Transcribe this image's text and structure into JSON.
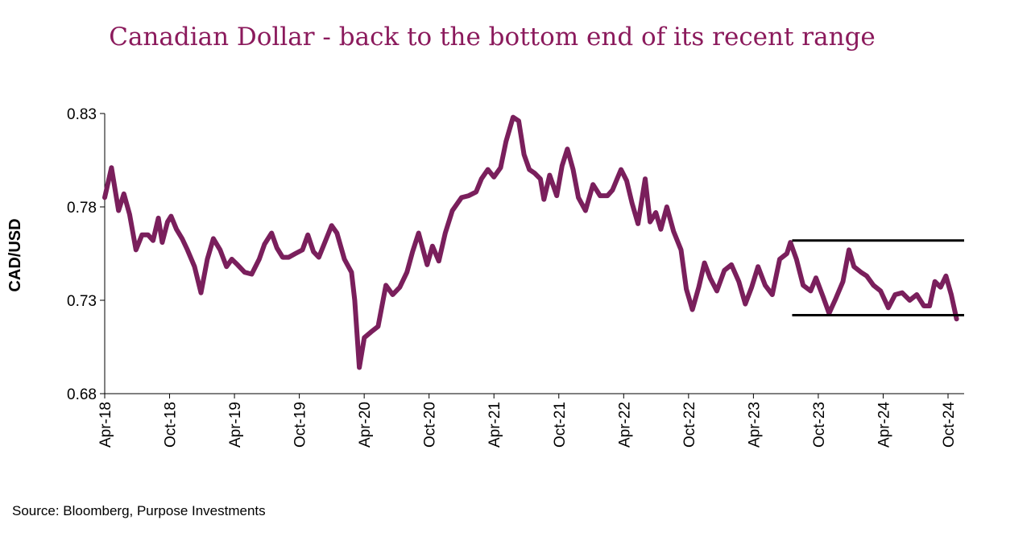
{
  "colors": {
    "title": "#8B1A5C",
    "series": "#7A1F5C",
    "range_lines": "#000000"
  },
  "footer": {
    "source": "Source: Bloomberg, Purpose Investments"
  },
  "chart_data": {
    "type": "line",
    "title": "Canadian Dollar - back to the bottom end of its recent range",
    "xlabel": "",
    "ylabel": "CAD/USD",
    "ylim": [
      0.68,
      0.83
    ],
    "yticks": [
      "0.68",
      "0.73",
      "0.78",
      "0.83"
    ],
    "xticks": [
      "Apr-18",
      "Oct-18",
      "Apr-19",
      "Oct-19",
      "Apr-20",
      "Oct-20",
      "Apr-21",
      "Oct-21",
      "Apr-22",
      "Oct-22",
      "Apr-23",
      "Oct-23",
      "Apr-24",
      "Oct-24"
    ],
    "grid": false,
    "legend": "none",
    "series": [
      {
        "values": [
          [
            "2018-04-01",
            0.785
          ],
          [
            "2018-04-20",
            0.801
          ],
          [
            "2018-05-10",
            0.778
          ],
          [
            "2018-05-25",
            0.787
          ],
          [
            "2018-06-10",
            0.776
          ],
          [
            "2018-06-28",
            0.757
          ],
          [
            "2018-07-15",
            0.765
          ],
          [
            "2018-08-01",
            0.765
          ],
          [
            "2018-08-15",
            0.762
          ],
          [
            "2018-08-30",
            0.774
          ],
          [
            "2018-09-10",
            0.761
          ],
          [
            "2018-09-25",
            0.772
          ],
          [
            "2018-10-05",
            0.775
          ],
          [
            "2018-10-20",
            0.768
          ],
          [
            "2018-11-05",
            0.763
          ],
          [
            "2018-11-20",
            0.757
          ],
          [
            "2018-12-10",
            0.748
          ],
          [
            "2018-12-28",
            0.734
          ],
          [
            "2019-01-15",
            0.752
          ],
          [
            "2019-02-01",
            0.763
          ],
          [
            "2019-02-20",
            0.757
          ],
          [
            "2019-03-10",
            0.748
          ],
          [
            "2019-03-25",
            0.752
          ],
          [
            "2019-04-10",
            0.749
          ],
          [
            "2019-04-30",
            0.745
          ],
          [
            "2019-05-20",
            0.744
          ],
          [
            "2019-06-10",
            0.752
          ],
          [
            "2019-06-25",
            0.76
          ],
          [
            "2019-07-15",
            0.766
          ],
          [
            "2019-07-30",
            0.758
          ],
          [
            "2019-08-15",
            0.753
          ],
          [
            "2019-09-01",
            0.753
          ],
          [
            "2019-09-20",
            0.755
          ],
          [
            "2019-10-10",
            0.757
          ],
          [
            "2019-10-25",
            0.765
          ],
          [
            "2019-11-10",
            0.756
          ],
          [
            "2019-11-25",
            0.753
          ],
          [
            "2019-12-10",
            0.76
          ],
          [
            "2019-12-31",
            0.77
          ],
          [
            "2020-01-15",
            0.766
          ],
          [
            "2020-02-05",
            0.752
          ],
          [
            "2020-02-25",
            0.745
          ],
          [
            "2020-03-05",
            0.73
          ],
          [
            "2020-03-18",
            0.694
          ],
          [
            "2020-04-01",
            0.71
          ],
          [
            "2020-04-20",
            0.713
          ],
          [
            "2020-05-10",
            0.716
          ],
          [
            "2020-06-01",
            0.738
          ],
          [
            "2020-06-20",
            0.733
          ],
          [
            "2020-07-10",
            0.737
          ],
          [
            "2020-07-30",
            0.745
          ],
          [
            "2020-08-15",
            0.756
          ],
          [
            "2020-09-01",
            0.766
          ],
          [
            "2020-09-25",
            0.749
          ],
          [
            "2020-10-10",
            0.759
          ],
          [
            "2020-10-28",
            0.751
          ],
          [
            "2020-11-15",
            0.766
          ],
          [
            "2020-12-05",
            0.778
          ],
          [
            "2020-12-31",
            0.785
          ],
          [
            "2021-01-20",
            0.786
          ],
          [
            "2021-02-10",
            0.788
          ],
          [
            "2021-02-25",
            0.795
          ],
          [
            "2021-03-15",
            0.8
          ],
          [
            "2021-04-01",
            0.796
          ],
          [
            "2021-04-20",
            0.801
          ],
          [
            "2021-05-05",
            0.815
          ],
          [
            "2021-05-25",
            0.828
          ],
          [
            "2021-06-10",
            0.826
          ],
          [
            "2021-06-25",
            0.808
          ],
          [
            "2021-07-10",
            0.8
          ],
          [
            "2021-07-25",
            0.798
          ],
          [
            "2021-08-10",
            0.795
          ],
          [
            "2021-08-20",
            0.784
          ],
          [
            "2021-09-05",
            0.797
          ],
          [
            "2021-09-25",
            0.786
          ],
          [
            "2021-10-10",
            0.802
          ],
          [
            "2021-10-25",
            0.811
          ],
          [
            "2021-11-10",
            0.8
          ],
          [
            "2021-11-25",
            0.785
          ],
          [
            "2021-12-15",
            0.778
          ],
          [
            "2022-01-05",
            0.792
          ],
          [
            "2022-01-25",
            0.786
          ],
          [
            "2022-02-15",
            0.786
          ],
          [
            "2022-03-01",
            0.789
          ],
          [
            "2022-03-25",
            0.8
          ],
          [
            "2022-04-10",
            0.794
          ],
          [
            "2022-04-25",
            0.782
          ],
          [
            "2022-05-12",
            0.771
          ],
          [
            "2022-06-01",
            0.795
          ],
          [
            "2022-06-15",
            0.772
          ],
          [
            "2022-07-01",
            0.777
          ],
          [
            "2022-07-15",
            0.768
          ],
          [
            "2022-08-01",
            0.78
          ],
          [
            "2022-08-20",
            0.767
          ],
          [
            "2022-09-10",
            0.757
          ],
          [
            "2022-09-25",
            0.736
          ],
          [
            "2022-10-12",
            0.725
          ],
          [
            "2022-10-30",
            0.737
          ],
          [
            "2022-11-15",
            0.75
          ],
          [
            "2022-12-01",
            0.742
          ],
          [
            "2022-12-20",
            0.735
          ],
          [
            "2023-01-10",
            0.746
          ],
          [
            "2023-01-30",
            0.749
          ],
          [
            "2023-02-20",
            0.74
          ],
          [
            "2023-03-10",
            0.728
          ],
          [
            "2023-03-28",
            0.737
          ],
          [
            "2023-04-15",
            0.748
          ],
          [
            "2023-05-05",
            0.738
          ],
          [
            "2023-05-25",
            0.733
          ],
          [
            "2023-06-15",
            0.752
          ],
          [
            "2023-07-05",
            0.755
          ],
          [
            "2023-07-15",
            0.761
          ],
          [
            "2023-08-01",
            0.752
          ],
          [
            "2023-08-20",
            0.738
          ],
          [
            "2023-09-10",
            0.735
          ],
          [
            "2023-09-25",
            0.742
          ],
          [
            "2023-10-15",
            0.732
          ],
          [
            "2023-11-01",
            0.723
          ],
          [
            "2023-11-20",
            0.731
          ],
          [
            "2023-12-10",
            0.74
          ],
          [
            "2023-12-27",
            0.757
          ],
          [
            "2024-01-10",
            0.748
          ],
          [
            "2024-01-30",
            0.745
          ],
          [
            "2024-02-15",
            0.743
          ],
          [
            "2024-03-05",
            0.738
          ],
          [
            "2024-03-25",
            0.735
          ],
          [
            "2024-04-16",
            0.726
          ],
          [
            "2024-05-05",
            0.733
          ],
          [
            "2024-05-25",
            0.734
          ],
          [
            "2024-06-15",
            0.73
          ],
          [
            "2024-07-05",
            0.733
          ],
          [
            "2024-07-25",
            0.727
          ],
          [
            "2024-08-10",
            0.727
          ],
          [
            "2024-08-25",
            0.74
          ],
          [
            "2024-09-10",
            0.737
          ],
          [
            "2024-09-25",
            0.743
          ],
          [
            "2024-10-10",
            0.733
          ],
          [
            "2024-10-25",
            0.72
          ]
        ]
      }
    ],
    "annotations": [
      {
        "type": "hline",
        "y": 0.762,
        "x_start": "2023-07-20",
        "x_end": "2024-12-31"
      },
      {
        "type": "hline",
        "y": 0.722,
        "x_start": "2023-07-20",
        "x_end": "2024-12-31"
      }
    ]
  }
}
